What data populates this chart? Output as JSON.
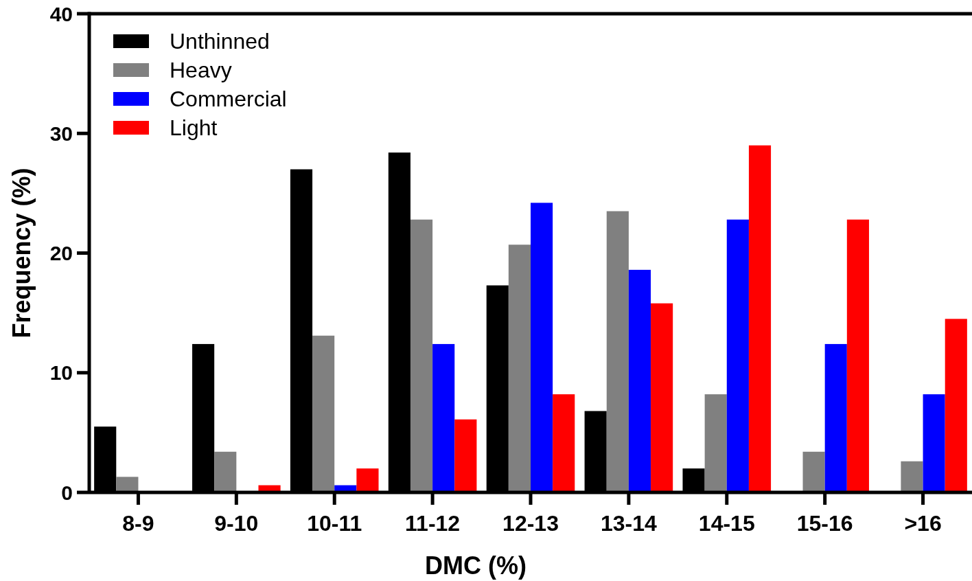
{
  "chart_data": {
    "type": "bar",
    "xlabel": "DMC (%)",
    "ylabel": "Frequency (%)",
    "categories": [
      "8-9",
      "9-10",
      "10-11",
      "11-12",
      "12-13",
      "13-14",
      "14-15",
      "15-16",
      ">16"
    ],
    "series": [
      {
        "name": "Unthinned",
        "color": "#000000",
        "values": [
          5.5,
          12.4,
          27.0,
          28.4,
          17.3,
          6.8,
          2.0,
          null,
          null
        ]
      },
      {
        "name": "Heavy",
        "color": "#808080",
        "values": [
          1.3,
          3.4,
          13.1,
          22.8,
          20.7,
          23.5,
          8.2,
          3.4,
          2.6
        ]
      },
      {
        "name": "Commercial",
        "color": "#0000ff",
        "values": [
          null,
          null,
          0.6,
          12.4,
          24.2,
          18.6,
          22.8,
          12.4,
          8.2
        ]
      },
      {
        "name": "Light",
        "color": "#ff0000",
        "values": [
          null,
          0.6,
          2.0,
          6.1,
          8.2,
          15.8,
          29.0,
          22.8,
          14.5
        ]
      }
    ],
    "ylim": [
      0,
      40
    ],
    "yticks": [
      0,
      10,
      20,
      30,
      40
    ],
    "legend": "top left",
    "grid": false
  }
}
